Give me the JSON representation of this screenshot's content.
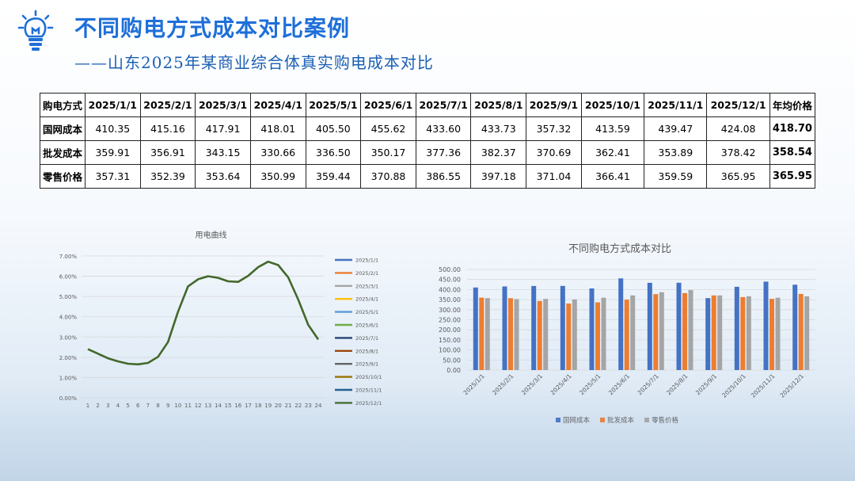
{
  "header": {
    "title": "不同购电方式成本对比案例",
    "subtitle": "——山东2025年某商业综合体真实购电成本对比"
  },
  "table": {
    "header_label": "购电方式",
    "columns": [
      "2025/1/1",
      "2025/2/1",
      "2025/3/1",
      "2025/4/1",
      "2025/5/1",
      "2025/6/1",
      "2025/7/1",
      "2025/8/1",
      "2025/9/1",
      "2025/10/1",
      "2025/11/1",
      "2025/12/1"
    ],
    "avg_label": "年均价格",
    "rows": [
      {
        "label": "国网成本",
        "values": [
          "410.35",
          "415.16",
          "417.91",
          "418.01",
          "405.50",
          "455.62",
          "433.60",
          "433.73",
          "357.32",
          "413.59",
          "439.47",
          "424.08"
        ],
        "avg": "418.70"
      },
      {
        "label": "批发成本",
        "values": [
          "359.91",
          "356.91",
          "343.15",
          "330.66",
          "336.50",
          "350.17",
          "377.36",
          "382.37",
          "370.69",
          "362.41",
          "353.89",
          "378.42"
        ],
        "avg": "358.54"
      },
      {
        "label": "零售价格",
        "values": [
          "357.31",
          "352.39",
          "353.64",
          "350.99",
          "359.44",
          "370.88",
          "386.55",
          "397.18",
          "371.04",
          "366.41",
          "359.59",
          "365.95"
        ],
        "avg": "365.95"
      }
    ]
  },
  "chart_data": [
    {
      "type": "line",
      "title": "用电曲线",
      "x": [
        1,
        2,
        3,
        4,
        5,
        6,
        7,
        8,
        9,
        10,
        11,
        12,
        13,
        14,
        15,
        16,
        17,
        18,
        19,
        20,
        21,
        22,
        23,
        24
      ],
      "ylim": [
        0,
        0.07
      ],
      "yticks": [
        "0.00%",
        "1.00%",
        "2.00%",
        "3.00%",
        "4.00%",
        "5.00%",
        "6.00%",
        "7.00%"
      ],
      "grid": true,
      "legend": "right",
      "series": [
        {
          "name": "2025/1/1",
          "color": "#4472c4"
        },
        {
          "name": "2025/2/1",
          "color": "#ed7d31"
        },
        {
          "name": "2025/3/1",
          "color": "#a5a5a5"
        },
        {
          "name": "2025/4/1",
          "color": "#ffc000"
        },
        {
          "name": "2025/5/1",
          "color": "#5b9bd5"
        },
        {
          "name": "2025/6/1",
          "color": "#70ad47"
        },
        {
          "name": "2025/7/1",
          "color": "#264478"
        },
        {
          "name": "2025/8/1",
          "color": "#9e480e"
        },
        {
          "name": "2025/9/1",
          "color": "#636363"
        },
        {
          "name": "2025/10/1",
          "color": "#997300"
        },
        {
          "name": "2025/11/1",
          "color": "#255e91"
        },
        {
          "name": "2025/12/1",
          "color": "#43682b",
          "values": [
            0.024,
            0.0218,
            0.0195,
            0.018,
            0.0168,
            0.0165,
            0.0172,
            0.0202,
            0.0275,
            0.0425,
            0.055,
            0.0585,
            0.06,
            0.0592,
            0.0575,
            0.0572,
            0.0602,
            0.0645,
            0.0672,
            0.0655,
            0.0595,
            0.0485,
            0.036,
            0.0288
          ]
        }
      ]
    },
    {
      "type": "bar",
      "title": "不同购电方式成本对比",
      "categories": [
        "2025/1/1",
        "2025/2/1",
        "2025/3/1",
        "2025/4/1",
        "2025/5/1",
        "2025/6/1",
        "2025/7/1",
        "2025/8/1",
        "2025/9/1",
        "2025/10/1",
        "2025/11/1",
        "2025/12/1"
      ],
      "ylim": [
        0,
        500
      ],
      "yticks": [
        "0.00",
        "50.00",
        "100.00",
        "150.00",
        "200.00",
        "250.00",
        "300.00",
        "350.00",
        "400.00",
        "450.00",
        "500.00"
      ],
      "grid": true,
      "legend": "bottom",
      "series": [
        {
          "name": "国网成本",
          "color": "#4472c4",
          "values": [
            410.35,
            415.16,
            417.91,
            418.01,
            405.5,
            455.62,
            433.6,
            433.73,
            357.32,
            413.59,
            439.47,
            424.08
          ]
        },
        {
          "name": "批发成本",
          "color": "#ed7d31",
          "values": [
            359.91,
            356.91,
            343.15,
            330.66,
            336.5,
            350.17,
            377.36,
            382.37,
            370.69,
            362.41,
            353.89,
            378.42
          ]
        },
        {
          "name": "零售价格",
          "color": "#a5a5a5",
          "values": [
            357.31,
            352.39,
            353.64,
            350.99,
            359.44,
            370.88,
            386.55,
            397.18,
            371.04,
            366.41,
            359.59,
            365.95
          ]
        }
      ]
    }
  ]
}
